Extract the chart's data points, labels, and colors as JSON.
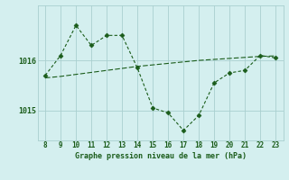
{
  "hours": [
    8,
    9,
    10,
    11,
    12,
    13,
    14,
    15,
    16,
    17,
    18,
    19,
    20,
    21,
    22,
    23
  ],
  "pressure": [
    1015.7,
    1016.1,
    1016.7,
    1016.3,
    1016.5,
    1016.5,
    1015.85,
    1015.05,
    1014.95,
    1014.6,
    1014.9,
    1015.55,
    1015.75,
    1015.8,
    1016.1,
    1016.05
  ],
  "trend": [
    1015.65,
    1015.68,
    1015.72,
    1015.76,
    1015.8,
    1015.84,
    1015.88,
    1015.91,
    1015.94,
    1015.97,
    1016.0,
    1016.02,
    1016.04,
    1016.06,
    1016.08,
    1016.09
  ],
  "line_color": "#1a5c1a",
  "bg_color": "#d4efef",
  "grid_color": "#aacfcf",
  "xlabel": "Graphe pression niveau de la mer (hPa)",
  "yticks": [
    1015,
    1016
  ],
  "ylim": [
    1014.4,
    1017.1
  ],
  "xlim": [
    7.5,
    23.5
  ]
}
